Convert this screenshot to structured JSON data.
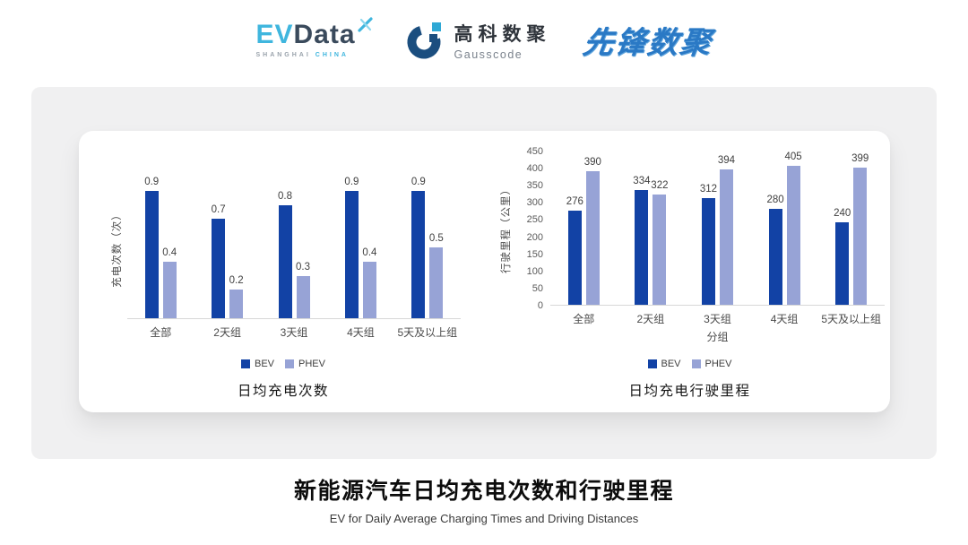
{
  "header": {
    "evdata": {
      "ev": "EV",
      "data": "Data",
      "sub_left": "SHANGHAI",
      "sub_right": "CHINA"
    },
    "gausscode": {
      "cn": "高科数聚",
      "en": "Gausscode"
    },
    "xianfeng": "先锋数聚"
  },
  "chart_data": [
    {
      "type": "bar",
      "title": "日均充电次数",
      "ylabel": "充电次数（次）",
      "xlabel": "",
      "categories": [
        "全部",
        "2天组",
        "3天组",
        "4天组",
        "5天及以上组"
      ],
      "series": [
        {
          "name": "BEV",
          "color": "#1242A5",
          "values": [
            0.9,
            0.7,
            0.8,
            0.9,
            0.9
          ],
          "labels": [
            "0.9",
            "0.7",
            "0.8",
            "0.9",
            "0.9"
          ]
        },
        {
          "name": "PHEV",
          "color": "#97A3D6",
          "values": [
            0.4,
            0.2,
            0.3,
            0.4,
            0.5
          ],
          "labels": [
            "0.4",
            "0.2",
            "0.3",
            "0.4",
            "0.5"
          ]
        }
      ],
      "ylim": [
        0,
        1.0
      ],
      "yticks": [],
      "grid": false,
      "legend_position": "bottom"
    },
    {
      "type": "bar",
      "title": "日均充电行驶里程",
      "ylabel": "行驶里程（公里）",
      "xlabel": "分组",
      "categories": [
        "全部",
        "2天组",
        "3天组",
        "4天组",
        "5天及以上组"
      ],
      "series": [
        {
          "name": "BEV",
          "color": "#1242A5",
          "values": [
            276,
            334,
            312,
            280,
            240
          ],
          "labels": [
            "276",
            "334",
            "312",
            "280",
            "240"
          ]
        },
        {
          "name": "PHEV",
          "color": "#97A3D6",
          "values": [
            390,
            322,
            394,
            405,
            399
          ],
          "labels": [
            "390",
            "322",
            "394",
            "405",
            "399"
          ]
        }
      ],
      "ylim": [
        0,
        450
      ],
      "yticks": [
        0,
        50,
        100,
        150,
        200,
        250,
        300,
        350,
        400,
        450
      ],
      "grid": false,
      "legend_position": "bottom"
    }
  ],
  "footer": {
    "title": "新能源汽车日均充电次数和行驶里程",
    "subtitle": "EV for Daily Average Charging Times and Driving Distances"
  },
  "colors": {
    "bev": "#1242A5",
    "phev": "#97A3D6",
    "panel_bg": "#F0F0F1",
    "card_bg": "#FFFFFF",
    "axis_line": "#D8D8D8",
    "evdata_blue": "#3FB6DE",
    "evdata_dark": "#3A4A5C",
    "gauss_dark": "#1B4E7F",
    "gauss_teal": "#2FA8D5",
    "xianfeng_blue": "#2A79C5"
  }
}
